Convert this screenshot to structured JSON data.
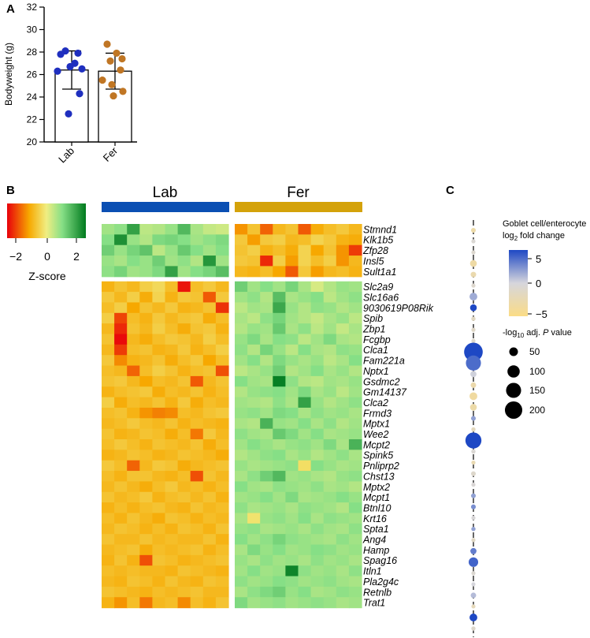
{
  "panels": {
    "a": "A",
    "b": "B",
    "c": "C"
  },
  "chart_data": [
    {
      "panel": "A",
      "type": "bar",
      "title": "",
      "xlabel": "",
      "ylabel": "Bodyweight (g)",
      "ylim": [
        20,
        32
      ],
      "yticks": [
        "20",
        "22",
        "24",
        "26",
        "28",
        "30",
        "32"
      ],
      "categories": [
        "Lab",
        "Fer"
      ],
      "values": [
        26.4,
        26.3
      ],
      "sd": [
        1.7,
        1.6
      ],
      "points": [
        [
          28.1,
          27.9,
          27.8,
          27.0,
          26.7,
          26.5,
          26.3,
          24.3,
          22.5
        ],
        [
          28.7,
          27.9,
          27.4,
          27.2,
          26.4,
          25.5,
          25.1,
          24.5,
          24.1
        ]
      ],
      "colors": {
        "Lab": "#1f2fbf",
        "Fer": "#c07624"
      }
    },
    {
      "panel": "B",
      "type": "heatmap",
      "column_groups": [
        {
          "name": "Lab",
          "color": "#0b4fb3",
          "n": 10
        },
        {
          "name": "Fer",
          "color": "#d4a20a",
          "n": 10
        }
      ],
      "colorbar": {
        "title": "Z-score",
        "ticks": [
          "−2",
          "0",
          "2"
        ],
        "range": [
          -3,
          3
        ],
        "colors": [
          "#e8000b",
          "#f7a800",
          "#f5f08a",
          "#88e088",
          "#007a1e"
        ]
      },
      "row_groups": [
        [
          "Stmnd1",
          "Klk1b5",
          "Zfp28",
          "Insl5",
          "Sult1a1"
        ],
        [
          "Slc2a9",
          "Slc16a6",
          "9030619P08Rik",
          "Spib",
          "Zbp1",
          "Fcgbp",
          "Clca1",
          "Fam221a",
          "Nptx1",
          "Gsdmc2",
          "Gm14137",
          "Clca2",
          "Frmd3",
          "Mptx1",
          "Wee2",
          "Mcpt2",
          "Spink5",
          "Pnliprp2",
          "Chst13",
          "Mptx2",
          "Mcpt1",
          "Btnl10",
          "Krt16",
          "Spta1",
          "Ang4",
          "Hamp",
          "Spag16",
          "Itln1",
          "Pla2g4c",
          "Retnlb",
          "Trat1"
        ]
      ],
      "matrix": [
        [
          0.9,
          1.1,
          2.3,
          0.6,
          0.7,
          1.0,
          1.9,
          0.8,
          0.5,
          0.4,
          -1.5,
          -0.8,
          -2.0,
          -1.0,
          -0.8,
          -2.1,
          -1.2,
          -0.9,
          -0.7,
          -1.0
        ],
        [
          1.2,
          2.6,
          1.0,
          0.7,
          1.3,
          1.4,
          1.2,
          0.9,
          1.1,
          1.3,
          -0.7,
          -1.4,
          -0.7,
          -0.6,
          -1.0,
          -0.9,
          -0.5,
          -0.7,
          -1.1,
          -1.2
        ],
        [
          1.5,
          1.0,
          1.4,
          1.7,
          0.6,
          1.0,
          1.6,
          1.2,
          0.9,
          1.2,
          -0.8,
          -0.6,
          -1.1,
          -0.9,
          -1.2,
          -0.5,
          -1.3,
          -0.8,
          -1.5,
          -2.4
        ],
        [
          1.0,
          0.8,
          1.2,
          1.0,
          1.5,
          0.9,
          1.1,
          0.7,
          2.5,
          0.9,
          -0.7,
          -0.8,
          -2.6,
          -0.6,
          -1.4,
          -0.5,
          -0.9,
          -0.6,
          -1.5,
          -1.0
        ],
        [
          1.1,
          1.4,
          0.9,
          1.0,
          1.3,
          2.3,
          0.9,
          1.2,
          1.4,
          1.8,
          -1.0,
          -1.1,
          -0.9,
          -1.3,
          -2.1,
          -0.7,
          -1.4,
          -1.0,
          -0.9,
          -1.1
        ],
        [
          -1.1,
          -0.8,
          -1.0,
          -0.6,
          -0.4,
          -0.9,
          -2.8,
          -0.9,
          -0.7,
          -1.0,
          1.5,
          0.9,
          1.2,
          0.9,
          1.4,
          0.8,
          0.3,
          0.7,
          1.0,
          0.9
        ],
        [
          -0.7,
          -1.0,
          -0.6,
          -1.2,
          -0.5,
          -1.1,
          -0.7,
          -0.8,
          -2.1,
          -0.7,
          0.9,
          1.1,
          0.7,
          1.8,
          0.8,
          1.0,
          1.2,
          0.6,
          0.9,
          1.1
        ],
        [
          -0.9,
          -0.6,
          -1.3,
          -0.8,
          -1.0,
          -0.7,
          -1.1,
          -1.0,
          -0.8,
          -2.5,
          0.6,
          0.9,
          0.8,
          2.2,
          1.0,
          0.7,
          1.1,
          1.0,
          0.7,
          0.9
        ],
        [
          -0.6,
          -2.3,
          -0.9,
          -1.1,
          -0.7,
          -1.0,
          -0.8,
          -0.7,
          -1.2,
          -0.9,
          0.8,
          0.6,
          1.1,
          1.4,
          0.9,
          0.7,
          0.5,
          0.8,
          1.0,
          0.6
        ],
        [
          -1.0,
          -2.6,
          -0.8,
          -1.0,
          -0.6,
          -0.9,
          -1.2,
          -0.8,
          -0.7,
          -1.1,
          0.7,
          1.0,
          0.9,
          1.6,
          0.8,
          1.1,
          0.6,
          0.9,
          0.5,
          0.8
        ],
        [
          -0.8,
          -2.9,
          -1.0,
          -1.2,
          -0.9,
          -0.7,
          -0.8,
          -1.0,
          -0.6,
          -0.9,
          1.0,
          1.3,
          0.8,
          1.2,
          1.1,
          0.6,
          0.9,
          1.3,
          0.8,
          0.7
        ],
        [
          -1.0,
          -2.4,
          -0.9,
          -0.8,
          -1.1,
          -1.0,
          -0.7,
          -1.1,
          -0.9,
          -0.6,
          1.1,
          0.7,
          1.4,
          1.0,
          0.6,
          1.2,
          0.8,
          0.7,
          1.1,
          1.0
        ],
        [
          -0.7,
          -1.6,
          -1.1,
          -1.0,
          -0.8,
          -1.2,
          -0.9,
          -0.7,
          -1.3,
          -0.9,
          0.9,
          1.2,
          0.7,
          1.3,
          1.0,
          0.8,
          1.0,
          0.6,
          0.8,
          1.2
        ],
        [
          -0.9,
          -1.0,
          -2.0,
          -0.9,
          -0.6,
          -0.8,
          -1.1,
          -0.9,
          -0.8,
          -2.2,
          0.6,
          0.8,
          1.0,
          1.5,
          0.7,
          0.9,
          1.2,
          0.8,
          1.0,
          0.7
        ],
        [
          -0.8,
          -0.7,
          -1.0,
          -1.3,
          -0.9,
          -1.0,
          -0.8,
          -2.1,
          -1.0,
          -0.8,
          1.2,
          0.9,
          0.8,
          2.9,
          1.1,
          0.7,
          0.6,
          0.9,
          0.8,
          1.0
        ],
        [
          -1.1,
          -0.9,
          -0.8,
          -0.7,
          -1.2,
          -0.9,
          -1.0,
          -0.8,
          -1.1,
          -0.9,
          0.7,
          1.0,
          1.1,
          1.2,
          0.9,
          1.3,
          0.8,
          1.0,
          0.6,
          0.9
        ],
        [
          -0.6,
          -1.2,
          -0.9,
          -1.0,
          -0.8,
          -1.1,
          -0.7,
          -1.2,
          -0.9,
          -1.0,
          0.9,
          0.8,
          0.7,
          1.1,
          0.8,
          2.3,
          1.0,
          0.7,
          0.9,
          1.1
        ],
        [
          -0.9,
          -0.8,
          -1.1,
          -1.5,
          -1.7,
          -1.6,
          -0.9,
          -1.0,
          -0.8,
          -0.7,
          1.0,
          1.1,
          0.9,
          1.3,
          1.2,
          0.8,
          1.1,
          0.9,
          1.0,
          0.8
        ],
        [
          -1.0,
          -0.9,
          -0.7,
          -0.9,
          -1.0,
          -0.8,
          -1.1,
          -0.9,
          -1.0,
          -1.1,
          0.8,
          0.7,
          2.0,
          1.0,
          0.9,
          1.2,
          0.8,
          1.1,
          0.7,
          0.9
        ],
        [
          -0.8,
          -1.1,
          -1.0,
          -0.8,
          -0.9,
          -1.2,
          -0.9,
          -1.8,
          -0.7,
          -1.0,
          1.1,
          0.9,
          0.8,
          1.6,
          1.3,
          0.9,
          1.2,
          0.8,
          0.9,
          1.0
        ],
        [
          -0.9,
          -0.7,
          -0.9,
          -1.1,
          -0.8,
          -0.9,
          -1.0,
          -0.8,
          -1.2,
          -0.9,
          0.9,
          1.2,
          1.0,
          0.8,
          1.0,
          1.1,
          0.9,
          1.3,
          0.8,
          2.0
        ],
        [
          -1.1,
          -1.0,
          -0.8,
          -0.9,
          -1.1,
          -1.0,
          -0.8,
          -0.9,
          -1.0,
          -1.2,
          0.7,
          0.9,
          1.1,
          1.2,
          0.8,
          1.0,
          0.7,
          0.9,
          1.1,
          0.8
        ],
        [
          -0.7,
          -0.9,
          -2.0,
          -1.0,
          -0.7,
          -0.8,
          -1.2,
          -1.0,
          -0.9,
          -0.8,
          1.0,
          0.8,
          0.9,
          1.0,
          1.1,
          -0.3,
          1.2,
          1.0,
          0.8,
          0.9
        ],
        [
          -0.9,
          -1.1,
          -0.8,
          -0.8,
          -1.0,
          -1.1,
          -0.9,
          -2.2,
          -0.8,
          -1.0,
          0.8,
          1.1,
          1.5,
          1.9,
          0.9,
          1.0,
          0.8,
          0.7,
          1.0,
          1.1
        ],
        [
          -1.0,
          -0.8,
          -1.0,
          -1.2,
          -0.9,
          -0.7,
          -1.0,
          -0.9,
          -1.1,
          -0.9,
          1.2,
          0.9,
          0.8,
          1.1,
          1.0,
          0.9,
          1.1,
          0.8,
          0.9,
          0.7
        ],
        [
          -0.8,
          -1.0,
          -0.9,
          -0.7,
          -1.1,
          -0.9,
          -0.8,
          -1.0,
          -0.8,
          -1.1,
          0.9,
          1.0,
          1.2,
          0.9,
          1.3,
          0.8,
          0.9,
          1.0,
          1.2,
          1.0
        ],
        [
          -1.1,
          -0.9,
          -1.1,
          -0.9,
          -0.8,
          -1.0,
          -1.1,
          -0.8,
          -1.0,
          -0.9,
          1.1,
          0.8,
          0.9,
          1.0,
          0.8,
          1.1,
          1.0,
          0.9,
          0.7,
          1.2
        ],
        [
          -0.9,
          -1.1,
          -0.8,
          -1.0,
          -1.2,
          -0.8,
          -0.9,
          -1.1,
          -0.9,
          -1.0,
          0.8,
          -0.2,
          1.0,
          1.1,
          0.9,
          1.2,
          0.8,
          1.1,
          1.0,
          0.9
        ],
        [
          -1.0,
          -0.8,
          -0.9,
          -1.1,
          -0.9,
          -1.1,
          -0.8,
          -0.9,
          -1.1,
          -0.8,
          1.0,
          1.1,
          0.8,
          0.9,
          1.0,
          0.8,
          1.1,
          0.9,
          0.8,
          1.1
        ],
        [
          -0.8,
          -1.0,
          -1.0,
          -0.8,
          -1.0,
          -0.9,
          -1.0,
          -1.0,
          -0.8,
          -1.1,
          1.2,
          0.9,
          1.1,
          1.4,
          1.1,
          1.0,
          0.9,
          0.8,
          1.1,
          0.9
        ],
        [
          -1.0,
          -0.9,
          -0.8,
          -1.2,
          -0.9,
          -1.0,
          -0.9,
          -0.8,
          -1.1,
          -0.9,
          0.8,
          1.3,
          1.0,
          1.2,
          0.9,
          1.0,
          1.2,
          1.1,
          0.9,
          1.0
        ],
        [
          -1.1,
          -0.8,
          -1.1,
          -2.2,
          -0.8,
          -0.9,
          -1.1,
          -1.0,
          -0.9,
          -0.8,
          1.0,
          0.8,
          1.1,
          0.9,
          1.0,
          0.8,
          1.1,
          0.9,
          1.0,
          0.8
        ],
        [
          -0.9,
          -1.0,
          -0.9,
          -1.0,
          -1.0,
          -1.1,
          -0.8,
          -0.9,
          -1.0,
          -1.1,
          0.9,
          1.2,
          0.9,
          1.0,
          2.8,
          1.1,
          0.9,
          1.0,
          0.8,
          1.1
        ],
        [
          -1.0,
          -1.1,
          -0.8,
          -0.9,
          -1.1,
          -0.8,
          -1.0,
          -1.1,
          -0.8,
          -0.9,
          1.1,
          0.9,
          1.0,
          1.2,
          1.1,
          0.9,
          1.0,
          1.1,
          0.9,
          0.8
        ],
        [
          -0.8,
          -0.9,
          -1.0,
          -1.1,
          -0.9,
          -1.0,
          -0.9,
          -0.8,
          -1.0,
          -1.0,
          0.8,
          1.1,
          1.3,
          1.5,
          1.0,
          1.2,
          0.8,
          0.9,
          1.1,
          1.0
        ],
        [
          -1.1,
          -1.5,
          -0.9,
          -1.8,
          -1.0,
          -0.9,
          -1.6,
          -0.9,
          -1.1,
          -0.8,
          1.3,
          0.9,
          1.0,
          1.1,
          0.9,
          1.0,
          1.1,
          1.0,
          0.8,
          0.9
        ]
      ]
    },
    {
      "panel": "C",
      "type": "scatter",
      "subtype": "dot-strip",
      "color_title": [
        "Goblet cell/enterocyte",
        "fold change"
      ],
      "color_title_log": "log",
      "color_title_sub": "2",
      "color_ticks": [
        "5",
        "0",
        "−5"
      ],
      "color_range": [
        -5,
        8
      ],
      "size_title_prefix": "-log",
      "size_title_sub": "10",
      "size_title_suffix": " adj. ",
      "size_title_p": "P",
      "size_title_end": " value",
      "size_legend": [
        "50",
        "100",
        "150",
        "200"
      ],
      "log2fc": [
        -3.0,
        -0.5,
        -0.8,
        -3.2,
        -2.7,
        -0.9,
        2.4,
        8.5,
        -1.5,
        -1.2,
        -1.0,
        9.0,
        6.0,
        0.3,
        -2.8,
        -3.5,
        -3.0,
        3.0,
        -1.8,
        8.8,
        -0.5,
        -2.5,
        -1.0,
        -0.4,
        3.0,
        4.0,
        -0.3,
        3.0,
        -1.4,
        5.0,
        6.5,
        -0.7,
        0.0,
        1.5,
        -2.0,
        9.5,
        -1.0
      ],
      "neglog10p": [
        15,
        8,
        10,
        30,
        20,
        8,
        40,
        30,
        12,
        10,
        10,
        230,
        150,
        25,
        20,
        40,
        30,
        15,
        12,
        170,
        12,
        10,
        15,
        10,
        15,
        15,
        10,
        12,
        10,
        25,
        60,
        10,
        8,
        20,
        10,
        40,
        12
      ]
    }
  ]
}
